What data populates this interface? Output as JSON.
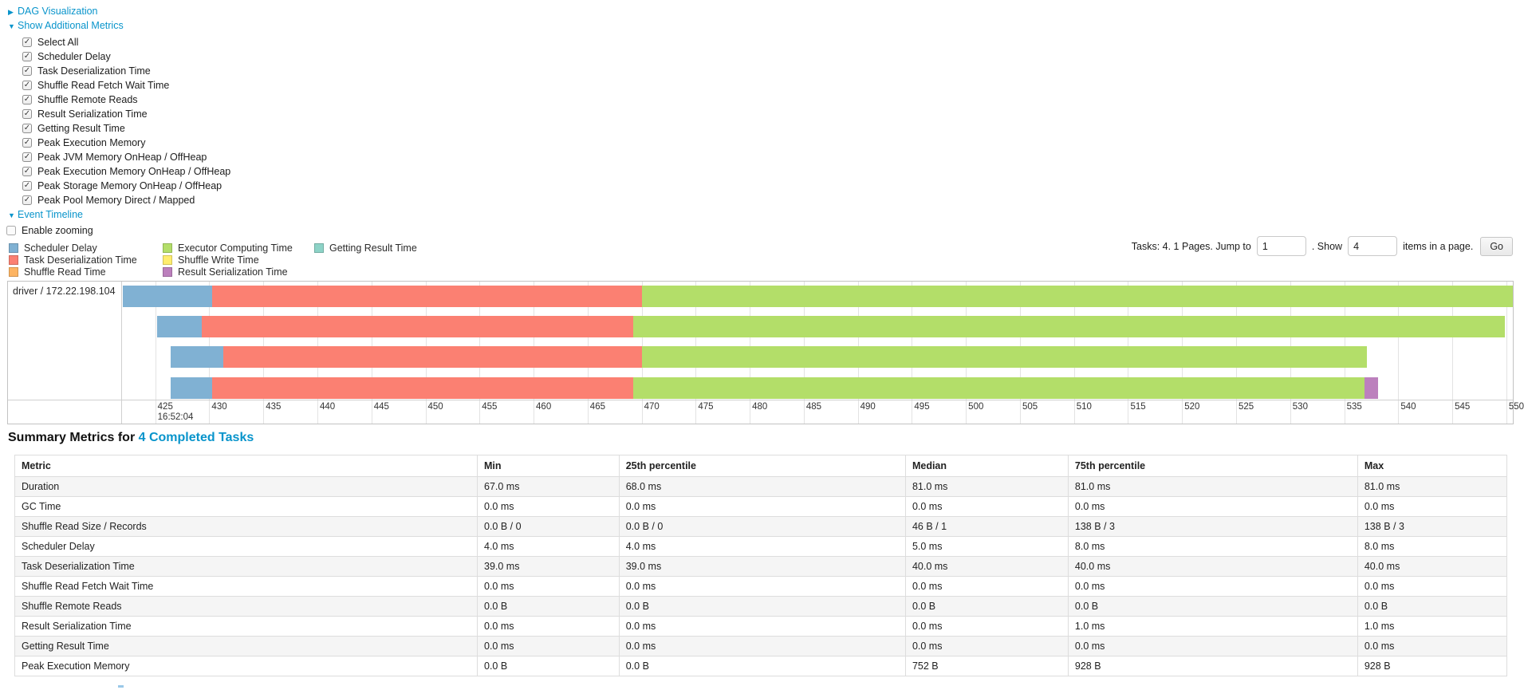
{
  "colors": {
    "link": "#0894cb",
    "scheduler_delay": "#80B1D3",
    "task_deserialization": "#FB8072",
    "shuffle_read": "#FDB462",
    "executor_computing": "#B3DE69",
    "shuffle_write": "#FFED6F",
    "result_serialization": "#BC80BD",
    "getting_result": "#8DD3C7"
  },
  "links": {
    "dag": "DAG Visualization",
    "metrics": "Show Additional Metrics",
    "timeline": "Event Timeline"
  },
  "metrics_checkboxes": [
    {
      "label": "Select All",
      "checked": true
    },
    {
      "label": "Scheduler Delay",
      "checked": true
    },
    {
      "label": "Task Deserialization Time",
      "checked": true
    },
    {
      "label": "Shuffle Read Fetch Wait Time",
      "checked": true
    },
    {
      "label": "Shuffle Remote Reads",
      "checked": true
    },
    {
      "label": "Result Serialization Time",
      "checked": true
    },
    {
      "label": "Getting Result Time",
      "checked": true
    },
    {
      "label": "Peak Execution Memory",
      "checked": true
    },
    {
      "label": "Peak JVM Memory OnHeap / OffHeap",
      "checked": true
    },
    {
      "label": "Peak Execution Memory OnHeap / OffHeap",
      "checked": true
    },
    {
      "label": "Peak Storage Memory OnHeap / OffHeap",
      "checked": true
    },
    {
      "label": "Peak Pool Memory Direct / Mapped",
      "checked": true
    }
  ],
  "enable_zooming": {
    "label": "Enable zooming",
    "checked": false
  },
  "legend_columns": [
    [
      {
        "label": "Scheduler Delay",
        "metric": "scheduler_delay"
      },
      {
        "label": "Task Deserialization Time",
        "metric": "task_deserialization"
      },
      {
        "label": "Shuffle Read Time",
        "metric": "shuffle_read"
      }
    ],
    [
      {
        "label": "Executor Computing Time",
        "metric": "executor_computing"
      },
      {
        "label": "Shuffle Write Time",
        "metric": "shuffle_write"
      },
      {
        "label": "Result Serialization Time",
        "metric": "result_serialization"
      }
    ],
    [
      {
        "label": "Getting Result Time",
        "metric": "getting_result"
      }
    ]
  ],
  "pagination": {
    "tasks_text": "Tasks: 4. 1 Pages. Jump to",
    "jump_value": "1",
    "show_text": ". Show",
    "show_value": "4",
    "items_text": "items in a page.",
    "go_label": "Go"
  },
  "chart_data": {
    "type": "timeline",
    "row_label": "driver / 172.22.198.104",
    "x_axis": {
      "min": 422,
      "max": 550.6,
      "tick_start": 425,
      "tick_step": 5,
      "tick_end": 550,
      "first_tick_time_label": "16:52:04"
    },
    "bars": [
      {
        "start": 422.0,
        "segments": [
          {
            "metric": "scheduler_delay",
            "end": 430.3
          },
          {
            "metric": "task_deserialization",
            "end": 470.0
          },
          {
            "metric": "executor_computing",
            "end": 550.6
          }
        ]
      },
      {
        "start": 425.2,
        "segments": [
          {
            "metric": "scheduler_delay",
            "end": 429.3
          },
          {
            "metric": "task_deserialization",
            "end": 469.2
          },
          {
            "metric": "executor_computing",
            "end": 549.9
          }
        ]
      },
      {
        "start": 426.4,
        "segments": [
          {
            "metric": "scheduler_delay",
            "end": 431.3
          },
          {
            "metric": "task_deserialization",
            "end": 470.0
          },
          {
            "metric": "executor_computing",
            "end": 537.1
          }
        ]
      },
      {
        "start": 426.4,
        "segments": [
          {
            "metric": "scheduler_delay",
            "end": 430.3
          },
          {
            "metric": "task_deserialization",
            "end": 469.2
          },
          {
            "metric": "executor_computing",
            "end": 536.9
          },
          {
            "metric": "result_serialization",
            "end": 538.1
          }
        ]
      }
    ]
  },
  "summary": {
    "heading_prefix": "Summary Metrics for ",
    "heading_link": "4 Completed Tasks",
    "columns": [
      "Metric",
      "Min",
      "25th percentile",
      "Median",
      "75th percentile",
      "Max"
    ],
    "rows": [
      [
        "Duration",
        "67.0 ms",
        "68.0 ms",
        "81.0 ms",
        "81.0 ms",
        "81.0 ms"
      ],
      [
        "GC Time",
        "0.0 ms",
        "0.0 ms",
        "0.0 ms",
        "0.0 ms",
        "0.0 ms"
      ],
      [
        "Shuffle Read Size / Records",
        "0.0 B / 0",
        "0.0 B / 0",
        "46 B / 1",
        "138 B / 3",
        "138 B / 3"
      ],
      [
        "Scheduler Delay",
        "4.0 ms",
        "4.0 ms",
        "5.0 ms",
        "8.0 ms",
        "8.0 ms"
      ],
      [
        "Task Deserialization Time",
        "39.0 ms",
        "39.0 ms",
        "40.0 ms",
        "40.0 ms",
        "40.0 ms"
      ],
      [
        "Shuffle Read Fetch Wait Time",
        "0.0 ms",
        "0.0 ms",
        "0.0 ms",
        "0.0 ms",
        "0.0 ms"
      ],
      [
        "Shuffle Remote Reads",
        "0.0 B",
        "0.0 B",
        "0.0 B",
        "0.0 B",
        "0.0 B"
      ],
      [
        "Result Serialization Time",
        "0.0 ms",
        "0.0 ms",
        "0.0 ms",
        "1.0 ms",
        "1.0 ms"
      ],
      [
        "Getting Result Time",
        "0.0 ms",
        "0.0 ms",
        "0.0 ms",
        "0.0 ms",
        "0.0 ms"
      ],
      [
        "Peak Execution Memory",
        "0.0 B",
        "0.0 B",
        "752 B",
        "928 B",
        "928 B"
      ]
    ]
  }
}
